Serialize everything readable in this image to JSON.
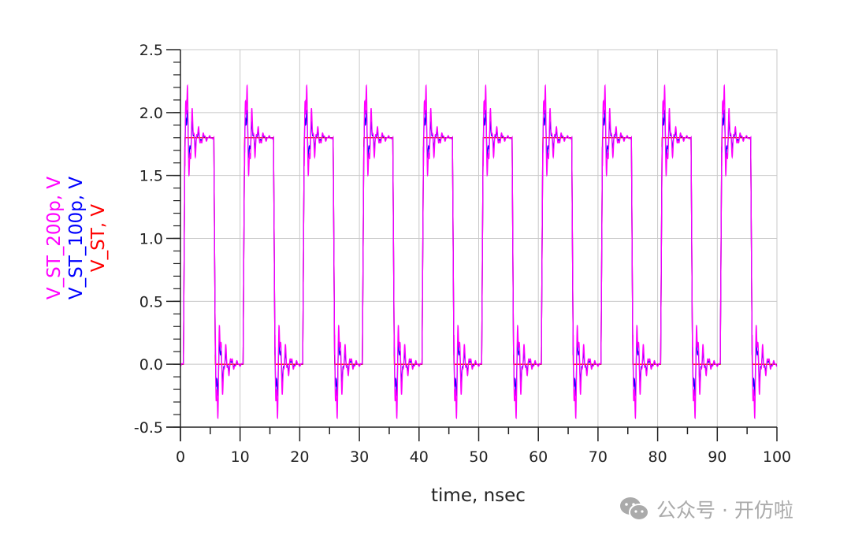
{
  "chart_data": {
    "type": "line",
    "title": "",
    "xlabel": "time, nsec",
    "ylabels": [
      "V_ST_200p, V",
      "V_ST_100p, V",
      "V_ST, V"
    ],
    "xlim": [
      0,
      100
    ],
    "ylim": [
      -0.5,
      2.5
    ],
    "xticks": [
      "0",
      "10",
      "20",
      "30",
      "40",
      "50",
      "60",
      "70",
      "80",
      "90",
      "100"
    ],
    "yticks": [
      "-0.5",
      "0.0",
      "0.5",
      "1.0",
      "1.5",
      "2.0",
      "2.5"
    ],
    "grid": true,
    "waveform": {
      "period_ns": 10,
      "rise_ns": 0.5,
      "fall_ns": 5.6,
      "edge_ns": 0.25,
      "high_v": 1.8,
      "low_v": 0.0
    },
    "series": [
      {
        "name": "V_ST_200p, V",
        "color": "#ff00ff",
        "overshoot_peak_v": 2.22,
        "undershoot_peak_v": -0.43
      },
      {
        "name": "V_ST_100p, V",
        "color": "#0000ff",
        "overshoot_peak_v": 2.02,
        "undershoot_peak_v": -0.25
      },
      {
        "name": "V_ST, V",
        "color": "#ff0000",
        "overshoot_peak_v": 1.8,
        "undershoot_peak_v": 0.0
      }
    ]
  },
  "watermark": {
    "text": "公众号 · 开仿啦",
    "icon": "wechat-icon"
  }
}
